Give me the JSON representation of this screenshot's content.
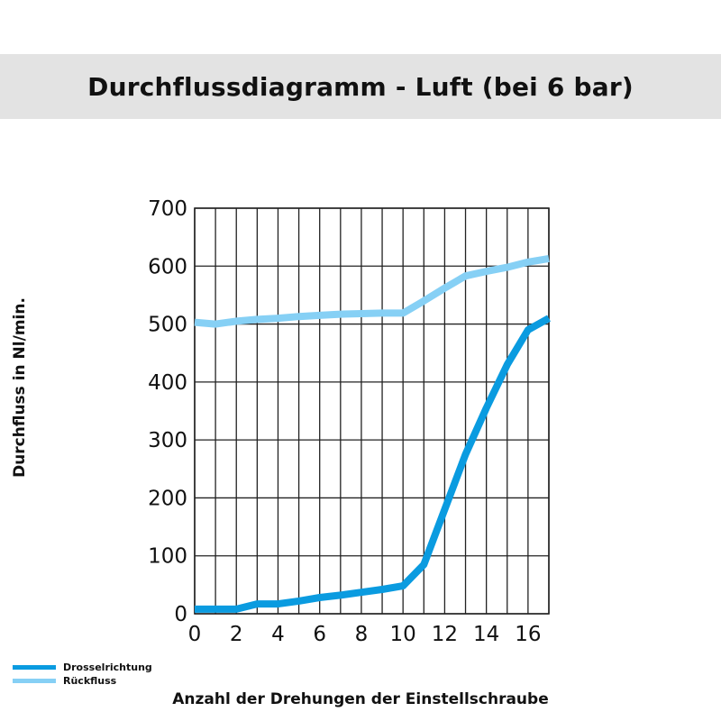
{
  "title": "Durchflussdiagramm - Luft (bei 6 bar)",
  "chart_data": {
    "type": "line",
    "title": "Durchflussdiagramm - Luft (bei 6 bar)",
    "xlabel": "Anzahl der Drehungen der Einstellschraube",
    "ylabel": "Durchfluss in Nl/min.",
    "xlim": [
      0,
      17
    ],
    "ylim": [
      0,
      700
    ],
    "x_ticks": [
      0,
      2,
      4,
      6,
      8,
      10,
      12,
      14,
      16
    ],
    "y_ticks": [
      0,
      100,
      200,
      300,
      400,
      500,
      600,
      700
    ],
    "grid": true,
    "legend_position": "bottom-left",
    "series": [
      {
        "name": "Drosselrichtung",
        "color": "#0a9be0",
        "x": [
          0,
          1,
          2,
          3,
          4,
          5,
          6,
          7,
          8,
          9,
          10,
          11,
          12,
          13,
          14,
          15,
          16,
          17
        ],
        "y": [
          8,
          8,
          8,
          17,
          17,
          22,
          28,
          32,
          37,
          42,
          48,
          85,
          180,
          275,
          355,
          430,
          490,
          510
        ]
      },
      {
        "name": "Rückfluss",
        "color": "#86d0f5",
        "x": [
          0,
          1,
          2,
          3,
          4,
          5,
          6,
          7,
          8,
          9,
          10,
          11,
          12,
          13,
          14,
          15,
          16,
          17
        ],
        "y": [
          503,
          500,
          505,
          508,
          510,
          513,
          515,
          517,
          518,
          519,
          519,
          540,
          562,
          583,
          591,
          598,
          607,
          613
        ]
      }
    ]
  }
}
